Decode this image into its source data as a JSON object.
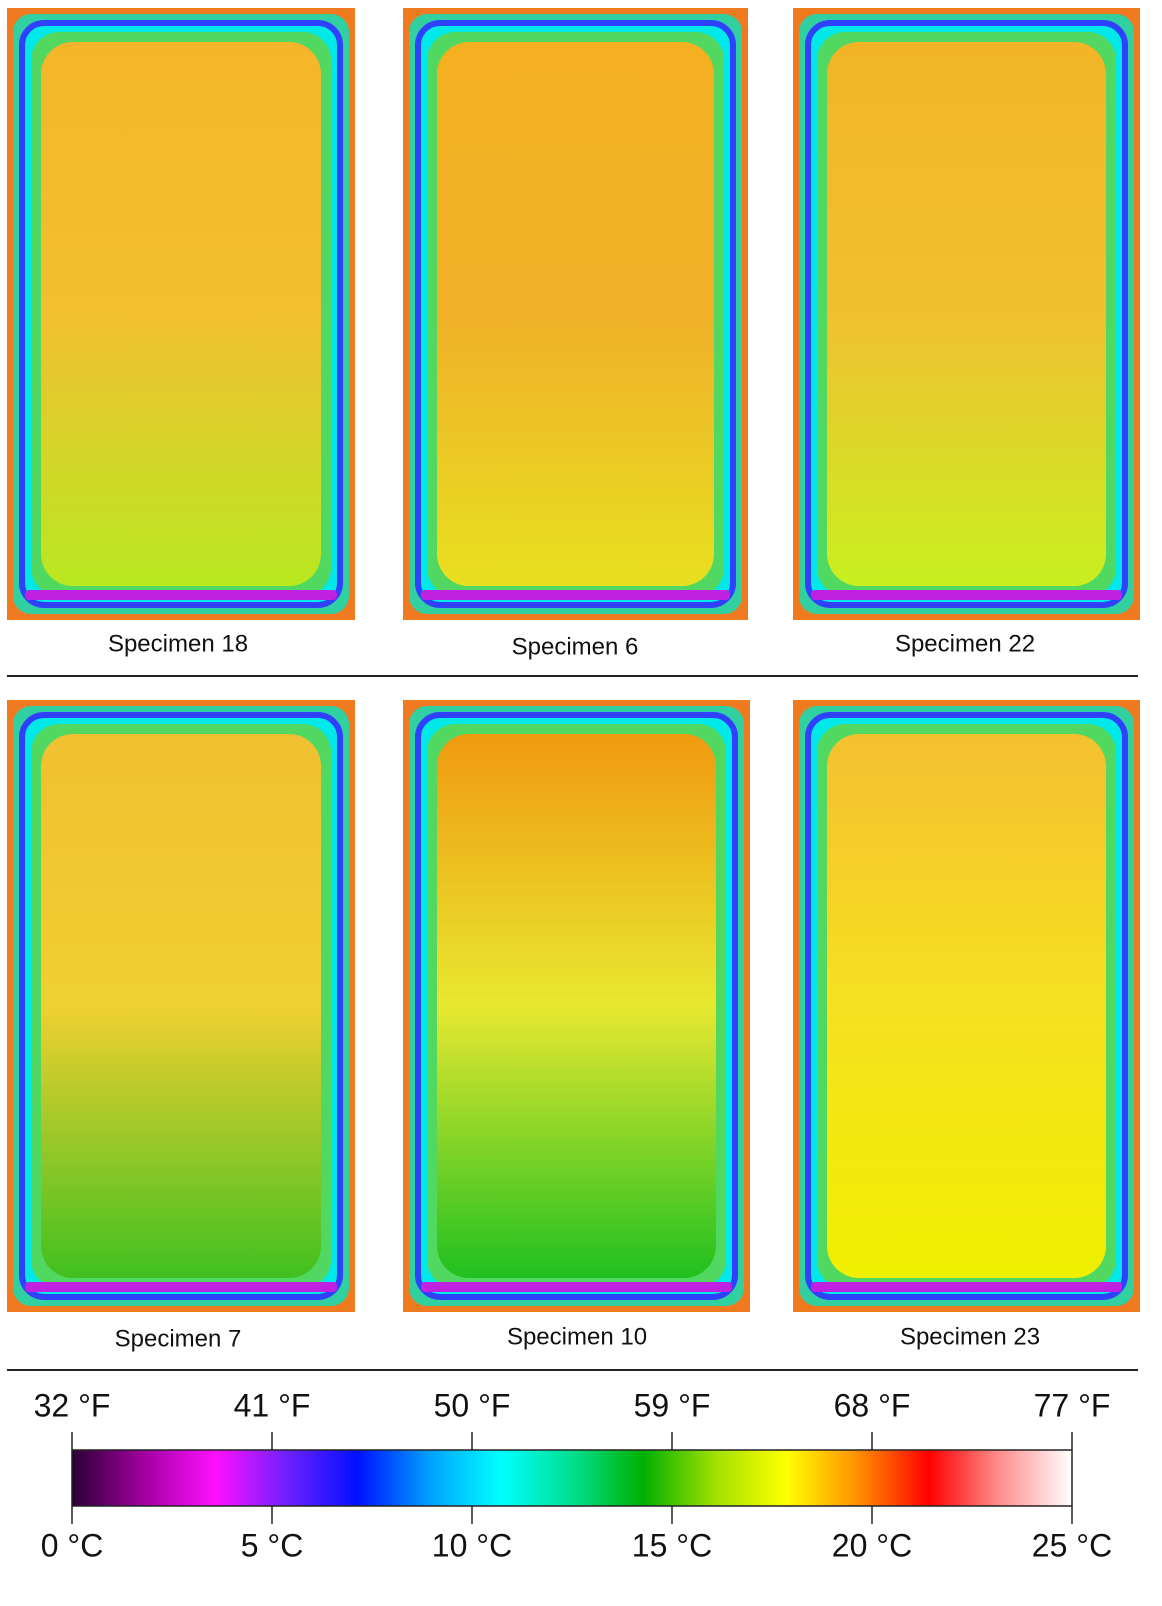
{
  "panels": [
    {
      "label": "Specimen 18"
    },
    {
      "label": "Specimen 6"
    },
    {
      "label": "Specimen 22"
    },
    {
      "label": "Specimen 7"
    },
    {
      "label": "Specimen 10"
    },
    {
      "label": "Specimen 23"
    }
  ],
  "colorbar": {
    "celsius_lim": [
      0,
      25
    ],
    "celsius_ticks": [
      {
        "value": 0,
        "label": "0 °C"
      },
      {
        "value": 5,
        "label": "5 °C"
      },
      {
        "value": 10,
        "label": "10 °C"
      },
      {
        "value": 15,
        "label": "15 °C"
      },
      {
        "value": 20,
        "label": "20 °C"
      },
      {
        "value": 25,
        "label": "25 °C"
      }
    ],
    "fahrenheit_lim": [
      32,
      77
    ],
    "fahrenheit_ticks": [
      {
        "value": 32,
        "label": "32 °F"
      },
      {
        "value": 41,
        "label": "41 °F"
      },
      {
        "value": 50,
        "label": "50 °F"
      },
      {
        "value": 59,
        "label": "59 °F"
      },
      {
        "value": 68,
        "label": "68 °F"
      },
      {
        "value": 77,
        "label": "77 °F"
      }
    ],
    "colors": [
      "#2a0035",
      "#a000a0",
      "#ff10ff",
      "#7020ff",
      "#0010ff",
      "#00a0ff",
      "#00ffff",
      "#00e090",
      "#00b000",
      "#a0e000",
      "#ffff00",
      "#ff9000",
      "#ff0000",
      "#ff9090",
      "#ffffff"
    ]
  }
}
